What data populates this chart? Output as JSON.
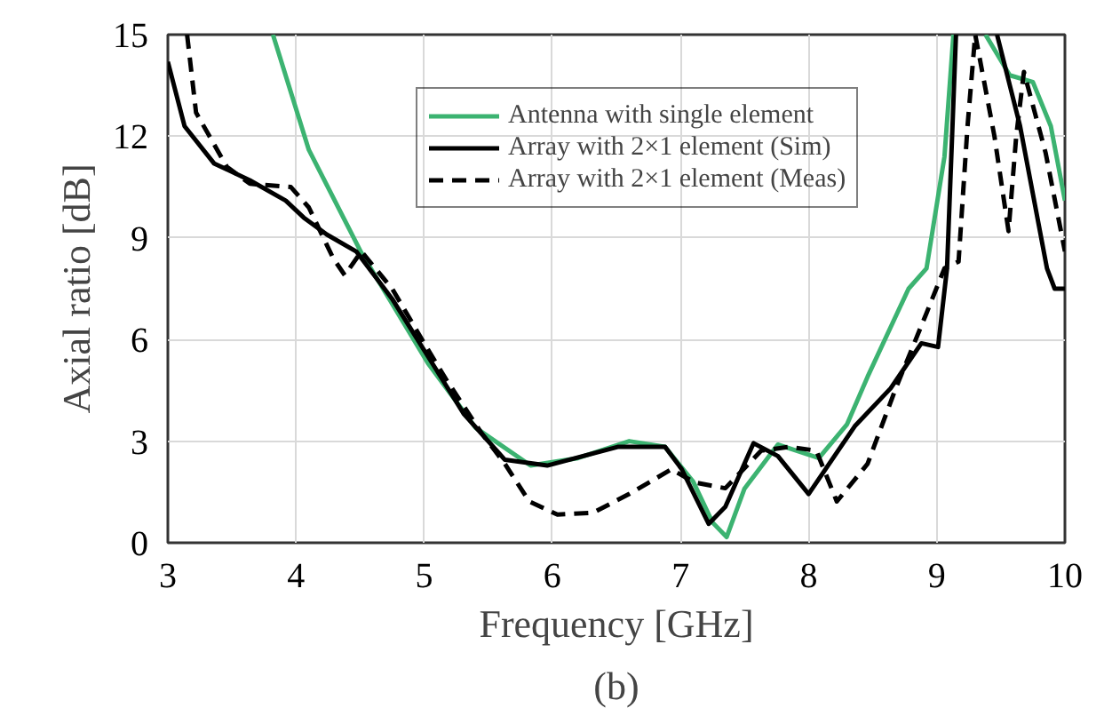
{
  "chart_data": {
    "type": "line",
    "xlabel": "Frequency [GHz]",
    "ylabel": "Axial ratio [dB]",
    "annotations": [
      "(b)"
    ],
    "xlim": [
      3,
      10
    ],
    "ylim": [
      0,
      15
    ],
    "xticks": [
      3,
      4,
      5,
      6,
      7,
      8,
      9,
      10
    ],
    "yticks": [
      0,
      3,
      6,
      9,
      12,
      15
    ],
    "grid": true,
    "legend": "top",
    "series": [
      {
        "name": "Antenna with single element",
        "color": "#3cb371",
        "line_style": "solid",
        "x": [
          3.82,
          4.1,
          4.51,
          5.03,
          5.4,
          5.83,
          6.2,
          6.6,
          6.88,
          7.1,
          7.25,
          7.36,
          7.5,
          7.76,
          8.08,
          8.3,
          8.46,
          8.78,
          8.92,
          9.06,
          9.13,
          9.2,
          9.38,
          9.57,
          9.75,
          9.89,
          10
        ],
        "values": [
          15,
          11.6,
          8.56,
          5.3,
          3.4,
          2.28,
          2.5,
          3.0,
          2.83,
          1.8,
          0.6,
          0.17,
          1.6,
          2.9,
          2.5,
          3.5,
          4.9,
          7.5,
          8.1,
          11.4,
          15,
          null,
          15,
          13.8,
          13.6,
          12.3,
          10.1
        ]
      },
      {
        "name": "Array with 2×1 element (Sim)",
        "color": "#000000",
        "line_style": "solid",
        "x": [
          3,
          3.13,
          3.36,
          3.64,
          3.92,
          4.06,
          4.24,
          4.47,
          4.75,
          5.03,
          5.31,
          5.63,
          5.96,
          6.51,
          6.88,
          7.01,
          7.22,
          7.35,
          7.57,
          7.76,
          8.0,
          8.36,
          8.64,
          8.88,
          9.01,
          9.08,
          9.15,
          9.3,
          9.47,
          9.65,
          9.86,
          9.92,
          10
        ],
        "values": [
          14.2,
          12.3,
          11.2,
          10.7,
          10.1,
          9.6,
          9.1,
          8.6,
          7.2,
          5.5,
          3.8,
          2.45,
          2.28,
          2.83,
          2.83,
          2.17,
          0.56,
          1.06,
          2.94,
          2.56,
          1.44,
          3.44,
          4.56,
          5.89,
          5.78,
          8.1,
          15,
          null,
          15,
          12.3,
          8.1,
          7.5,
          7.5
        ]
      },
      {
        "name": "Array with 2×1 element (Meas)",
        "color": "#000000",
        "line_style": "dashed",
        "x": [
          3.15,
          3.22,
          3.46,
          3.64,
          3.96,
          4.1,
          4.29,
          4.38,
          4.51,
          4.75,
          5.03,
          5.17,
          5.44,
          5.63,
          5.82,
          6.04,
          6.32,
          6.6,
          6.93,
          7.11,
          7.35,
          7.63,
          7.85,
          8.06,
          8.22,
          8.46,
          8.68,
          8.92,
          9.06,
          9.17,
          9.24,
          9.3,
          9.45,
          9.56,
          9.62,
          9.68,
          9.85,
          10
        ],
        "values": [
          15,
          12.7,
          11.1,
          10.6,
          10.5,
          9.9,
          8.4,
          7.9,
          8.6,
          7.5,
          5.7,
          4.83,
          3.28,
          2.33,
          1.22,
          0.83,
          0.89,
          1.44,
          2.17,
          1.78,
          1.61,
          2.72,
          2.83,
          2.72,
          1.22,
          2.33,
          4.56,
          6.78,
          8.1,
          8.3,
          12.3,
          15,
          12,
          9.2,
          12,
          13.9,
          11.5,
          8.6
        ]
      }
    ]
  }
}
